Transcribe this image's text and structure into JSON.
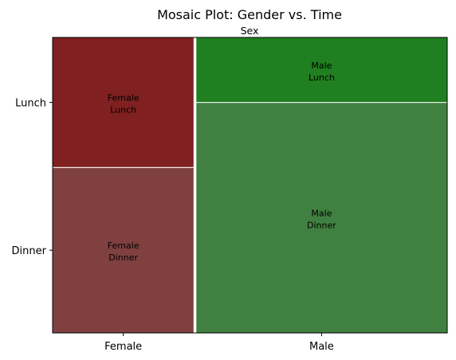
{
  "chart_data": {
    "type": "mosaic",
    "title": "Mosaic Plot: Gender vs. Time",
    "xlabel": "Sex",
    "ylabel": "",
    "x_categories": [
      "Female",
      "Male"
    ],
    "y_categories": [
      "Dinner",
      "Lunch"
    ],
    "x_proportions": [
      0.36,
      0.64
    ],
    "cells": [
      {
        "x": "Female",
        "y": "Dinner",
        "label": [
          "Female",
          "Dinner"
        ],
        "proportion_within_x": 0.56,
        "color": "#804040"
      },
      {
        "x": "Female",
        "y": "Lunch",
        "label": [
          "Female",
          "Lunch"
        ],
        "proportion_within_x": 0.44,
        "color": "#802020"
      },
      {
        "x": "Male",
        "y": "Dinner",
        "label": [
          "Male",
          "Dinner"
        ],
        "proportion_within_x": 0.78,
        "color": "#408040"
      },
      {
        "x": "Male",
        "y": "Lunch",
        "label": [
          "Male",
          "Lunch"
        ],
        "proportion_within_x": 0.22,
        "color": "#207f20"
      }
    ],
    "grid": false,
    "legend": "none"
  }
}
